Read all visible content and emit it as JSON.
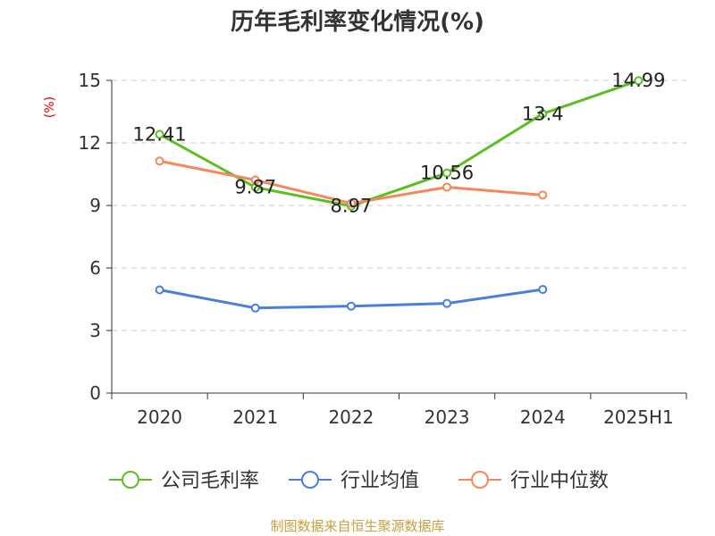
{
  "chart_data": {
    "type": "line",
    "title": "历年毛利率变化情况(%)",
    "ylabel": "(%)",
    "xlabel": "",
    "categories": [
      "2020",
      "2021",
      "2022",
      "2023",
      "2024",
      "2025H1"
    ],
    "ylim": [
      0,
      15
    ],
    "yticks": [
      "0",
      "3",
      "6",
      "9",
      "12",
      "15"
    ],
    "grid": true,
    "legend_position": "bottom",
    "series": [
      {
        "name": "公司毛利率",
        "color": "#5dbe24",
        "values": [
          12.41,
          9.87,
          8.97,
          10.56,
          13.4,
          14.99
        ],
        "labels": [
          "12.41",
          "9.87",
          "8.97",
          "10.56",
          "13.4",
          "14.99"
        ]
      },
      {
        "name": "行业均值",
        "color": "#4a7fdb",
        "values": [
          4.95,
          4.08,
          4.17,
          4.3,
          4.97,
          null
        ]
      },
      {
        "name": "行业中位数",
        "color": "#f5885a",
        "values": [
          11.13,
          10.22,
          9.1,
          9.88,
          9.5,
          null
        ]
      }
    ]
  },
  "footer": {
    "source": "制图数据来自恒生聚源数据库"
  }
}
